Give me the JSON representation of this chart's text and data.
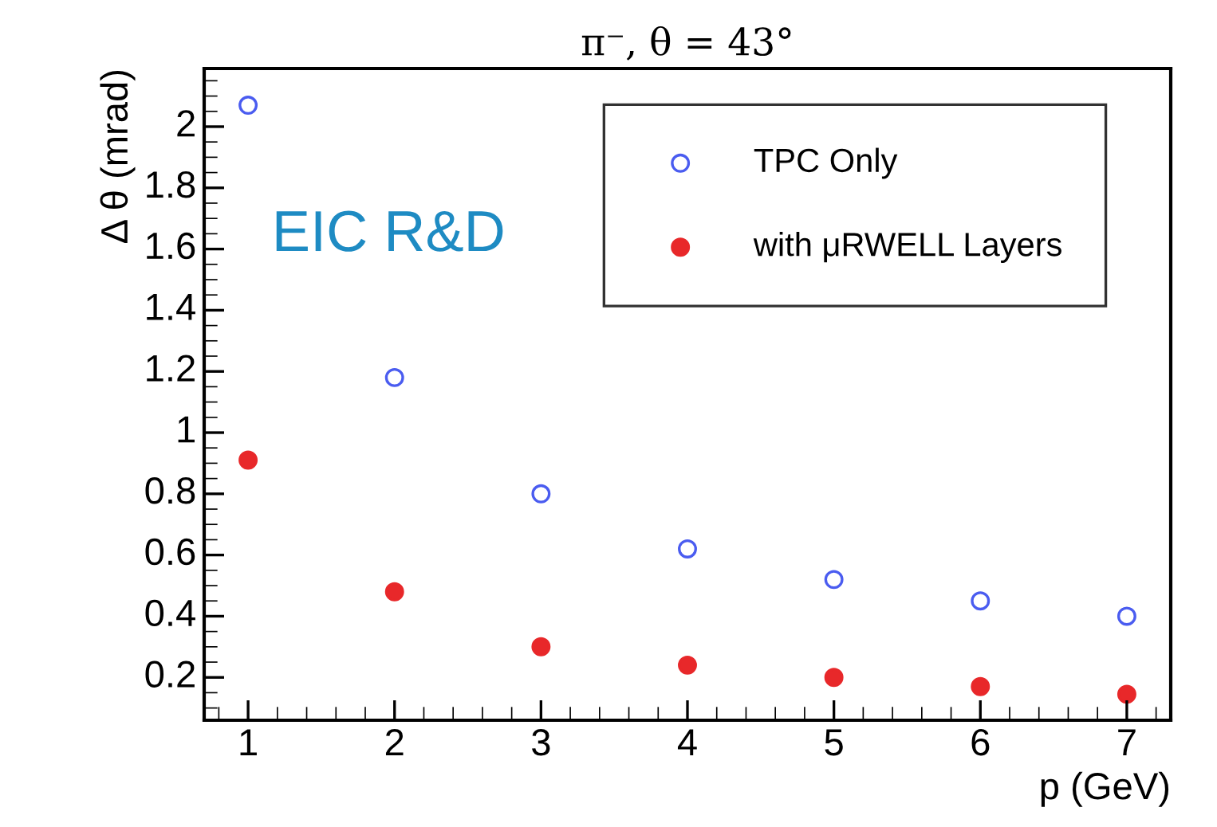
{
  "chart_data": {
    "type": "scatter",
    "title": "π⁻, θ = 43°",
    "xlabel": "p (GeV)",
    "ylabel": "Δ θ (mrad)",
    "x": [
      1,
      2,
      3,
      4,
      5,
      6,
      7
    ],
    "series": [
      {
        "name": "TPC Only",
        "color": "#4a5cf0",
        "values": [
          2.07,
          1.18,
          0.8,
          0.62,
          0.52,
          0.45,
          0.4
        ]
      },
      {
        "name": "with μRWELL Layers",
        "color": "#e8282a",
        "values": [
          0.91,
          0.48,
          0.3,
          0.24,
          0.2,
          0.17,
          0.145
        ]
      }
    ],
    "xlim": [
      0.7,
      7.3
    ],
    "xticks": [
      1,
      2,
      3,
      4,
      5,
      6,
      7
    ],
    "ylim": [
      0.06,
      2.19
    ],
    "yticks": [
      0.2,
      0.4,
      0.6,
      0.8,
      1,
      1.2,
      1.4,
      1.6,
      1.8,
      2
    ],
    "annotations": [
      "EIC R&D"
    ],
    "marker": "circle",
    "legend": "top right",
    "grid": false
  }
}
